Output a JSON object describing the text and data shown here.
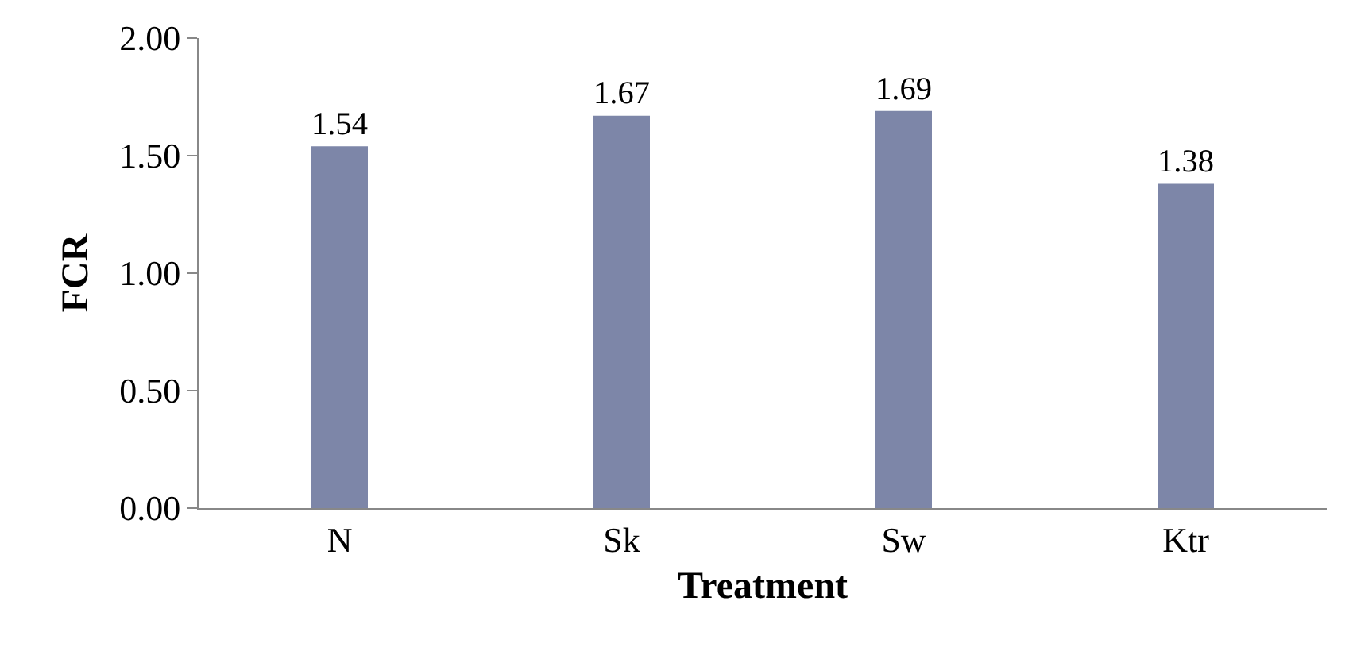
{
  "chart_data": {
    "type": "bar",
    "xlabel": "Treatment",
    "ylabel": "FCR",
    "categories": [
      "N",
      "Sk",
      "Sw",
      "Ktr"
    ],
    "values": [
      1.54,
      1.67,
      1.69,
      1.38
    ],
    "color": "#7d86a8",
    "ylim": [
      0,
      2
    ],
    "yticks": [
      {
        "value": 0,
        "label": "0.00"
      },
      {
        "value": 0.5,
        "label": "0.50"
      },
      {
        "value": 1,
        "label": "1.00"
      },
      {
        "value": 1.5,
        "label": "1.50"
      },
      {
        "value": 2,
        "label": "2.00"
      }
    ],
    "data_labels": true,
    "legend": false
  }
}
